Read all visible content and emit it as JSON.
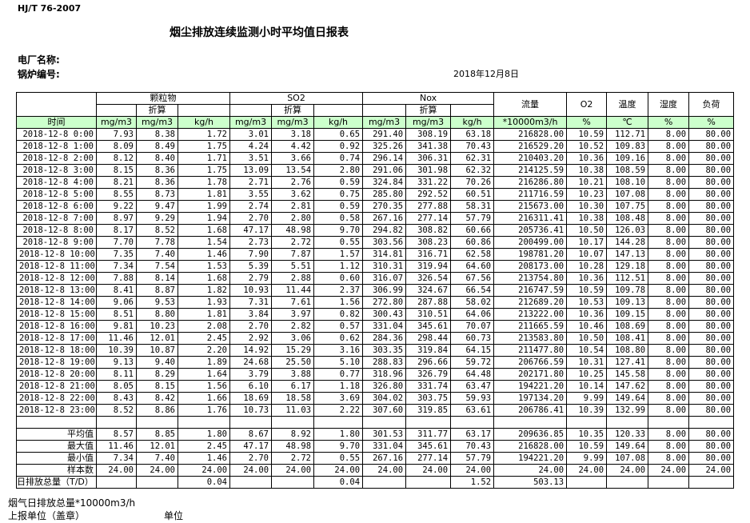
{
  "header": {
    "standard": "HJ/T  76-2007",
    "title": "烟尘排放连续监测小时平均值日报表",
    "plant_label": "电厂名称:",
    "boiler_label": "锅炉编号:",
    "date": "2018年12月8日"
  },
  "table": {
    "group_headers": [
      "颗粒物",
      "SO2",
      "Nox",
      "流量",
      "O2",
      "温度",
      "湿度",
      "负荷"
    ],
    "sub_headers": [
      "折算",
      "折算",
      "折算"
    ],
    "unit_headers": [
      "时间",
      "mg/m3",
      "mg/m3",
      "kg/h",
      "mg/m3",
      "mg/m3",
      "kg/h",
      "mg/m3",
      "mg/m3",
      "kg/h",
      "*10000m3/h",
      "%",
      "℃",
      "%",
      "%"
    ],
    "rows": [
      {
        "time": "2018-12-8 0:00",
        "values": [
          "7.93",
          "8.38",
          "1.72",
          "3.01",
          "3.18",
          "0.65",
          "291.40",
          "308.19",
          "63.18",
          "216828.00",
          "10.59",
          "112.71",
          "8.00",
          "80.00"
        ]
      },
      {
        "time": "2018-12-8 1:00",
        "values": [
          "8.09",
          "8.49",
          "1.75",
          "4.24",
          "4.42",
          "0.92",
          "325.26",
          "341.38",
          "70.43",
          "216529.20",
          "10.52",
          "109.83",
          "8.00",
          "80.00"
        ]
      },
      {
        "time": "2018-12-8 2:00",
        "values": [
          "8.12",
          "8.40",
          "1.71",
          "3.51",
          "3.66",
          "0.74",
          "296.14",
          "306.31",
          "62.31",
          "210403.20",
          "10.36",
          "109.16",
          "8.00",
          "80.00"
        ]
      },
      {
        "time": "2018-12-8 3:00",
        "values": [
          "8.15",
          "8.36",
          "1.75",
          "13.09",
          "13.54",
          "2.80",
          "291.06",
          "301.98",
          "62.32",
          "214125.59",
          "10.38",
          "108.59",
          "8.00",
          "80.00"
        ]
      },
      {
        "time": "2018-12-8 4:00",
        "values": [
          "8.21",
          "8.36",
          "1.78",
          "2.71",
          "2.76",
          "0.59",
          "324.84",
          "331.22",
          "70.26",
          "216286.80",
          "10.21",
          "108.10",
          "8.00",
          "80.00"
        ]
      },
      {
        "time": "2018-12-8 5:00",
        "values": [
          "8.55",
          "8.73",
          "1.81",
          "3.55",
          "3.62",
          "0.75",
          "285.80",
          "292.52",
          "60.51",
          "211716.59",
          "10.23",
          "107.08",
          "8.00",
          "80.00"
        ]
      },
      {
        "time": "2018-12-8 6:00",
        "values": [
          "9.22",
          "9.47",
          "1.99",
          "2.74",
          "2.81",
          "0.59",
          "270.35",
          "277.88",
          "58.31",
          "215673.00",
          "10.30",
          "107.75",
          "8.00",
          "80.00"
        ]
      },
      {
        "time": "2018-12-8 7:00",
        "values": [
          "8.97",
          "9.29",
          "1.94",
          "2.70",
          "2.80",
          "0.58",
          "267.16",
          "277.14",
          "57.79",
          "216311.41",
          "10.38",
          "108.48",
          "8.00",
          "80.00"
        ]
      },
      {
        "time": "2018-12-8 8:00",
        "values": [
          "8.17",
          "8.52",
          "1.68",
          "47.17",
          "48.98",
          "9.70",
          "294.82",
          "308.82",
          "60.66",
          "205736.41",
          "10.50",
          "126.03",
          "8.00",
          "80.00"
        ]
      },
      {
        "time": "2018-12-8 9:00",
        "values": [
          "7.70",
          "7.78",
          "1.54",
          "2.73",
          "2.72",
          "0.55",
          "303.56",
          "308.23",
          "60.86",
          "200499.00",
          "10.17",
          "144.28",
          "8.00",
          "80.00"
        ]
      },
      {
        "time": "2018-12-8 10:00",
        "values": [
          "7.35",
          "7.40",
          "1.46",
          "7.90",
          "7.87",
          "1.57",
          "314.81",
          "316.71",
          "62.58",
          "198781.20",
          "10.07",
          "147.13",
          "8.00",
          "80.00"
        ]
      },
      {
        "time": "2018-12-8 11:00",
        "values": [
          "7.34",
          "7.54",
          "1.53",
          "5.39",
          "5.51",
          "1.12",
          "310.31",
          "319.94",
          "64.60",
          "208173.00",
          "10.28",
          "129.18",
          "8.00",
          "80.00"
        ]
      },
      {
        "time": "2018-12-8 12:00",
        "values": [
          "7.88",
          "8.14",
          "1.68",
          "2.79",
          "2.88",
          "0.60",
          "316.07",
          "326.54",
          "67.56",
          "213754.80",
          "10.36",
          "112.51",
          "8.00",
          "80.00"
        ]
      },
      {
        "time": "2018-12-8 13:00",
        "values": [
          "8.41",
          "8.87",
          "1.82",
          "10.93",
          "11.44",
          "2.37",
          "306.99",
          "324.67",
          "66.54",
          "216747.59",
          "10.59",
          "109.78",
          "8.00",
          "80.00"
        ]
      },
      {
        "time": "2018-12-8 14:00",
        "values": [
          "9.06",
          "9.53",
          "1.93",
          "7.31",
          "7.61",
          "1.56",
          "272.80",
          "287.88",
          "58.02",
          "212689.20",
          "10.53",
          "109.13",
          "8.00",
          "80.00"
        ]
      },
      {
        "time": "2018-12-8 15:00",
        "values": [
          "8.51",
          "8.80",
          "1.81",
          "3.84",
          "3.97",
          "0.82",
          "300.43",
          "310.51",
          "64.06",
          "213222.00",
          "10.36",
          "109.15",
          "8.00",
          "80.00"
        ]
      },
      {
        "time": "2018-12-8 16:00",
        "values": [
          "9.81",
          "10.23",
          "2.08",
          "2.70",
          "2.82",
          "0.57",
          "331.04",
          "345.61",
          "70.07",
          "211665.59",
          "10.46",
          "108.69",
          "8.00",
          "80.00"
        ]
      },
      {
        "time": "2018-12-8 17:00",
        "values": [
          "11.46",
          "12.01",
          "2.45",
          "2.92",
          "3.06",
          "0.62",
          "284.36",
          "298.44",
          "60.73",
          "213583.80",
          "10.50",
          "108.41",
          "8.00",
          "80.00"
        ]
      },
      {
        "time": "2018-12-8 18:00",
        "values": [
          "10.39",
          "10.87",
          "2.20",
          "14.92",
          "15.29",
          "3.16",
          "303.35",
          "319.84",
          "64.15",
          "211477.80",
          "10.54",
          "108.80",
          "8.00",
          "80.00"
        ]
      },
      {
        "time": "2018-12-8 19:00",
        "values": [
          "9.13",
          "9.40",
          "1.89",
          "24.68",
          "25.50",
          "5.10",
          "288.83",
          "296.66",
          "59.72",
          "206766.59",
          "10.31",
          "127.41",
          "8.00",
          "80.00"
        ]
      },
      {
        "time": "2018-12-8 20:00",
        "values": [
          "8.11",
          "8.29",
          "1.64",
          "3.79",
          "3.88",
          "0.77",
          "318.96",
          "326.79",
          "64.48",
          "202171.80",
          "10.25",
          "145.58",
          "8.00",
          "80.00"
        ]
      },
      {
        "time": "2018-12-8 21:00",
        "values": [
          "8.05",
          "8.15",
          "1.56",
          "6.10",
          "6.17",
          "1.18",
          "326.80",
          "331.74",
          "63.47",
          "194221.20",
          "10.14",
          "147.62",
          "8.00",
          "80.00"
        ]
      },
      {
        "time": "2018-12-8 22:00",
        "values": [
          "8.43",
          "8.42",
          "1.66",
          "18.69",
          "18.58",
          "3.69",
          "304.02",
          "303.75",
          "59.93",
          "197134.20",
          "9.99",
          "149.64",
          "8.00",
          "80.00"
        ]
      },
      {
        "time": "2018-12-8 23:00",
        "values": [
          "8.52",
          "8.86",
          "1.76",
          "10.73",
          "11.03",
          "2.22",
          "307.60",
          "319.85",
          "63.61",
          "206786.41",
          "10.39",
          "132.99",
          "8.00",
          "80.00"
        ]
      }
    ],
    "summary": [
      {
        "label": "平均值",
        "values": [
          "8.57",
          "8.85",
          "1.80",
          "8.67",
          "8.92",
          "1.80",
          "301.53",
          "311.77",
          "63.17",
          "209636.85",
          "10.35",
          "120.33",
          "8.00",
          "80.00"
        ]
      },
      {
        "label": "最大值",
        "values": [
          "11.46",
          "12.01",
          "2.45",
          "47.17",
          "48.98",
          "9.70",
          "331.04",
          "345.61",
          "70.43",
          "216828.00",
          "10.59",
          "149.64",
          "8.00",
          "80.00"
        ]
      },
      {
        "label": "最小值",
        "values": [
          "7.34",
          "7.40",
          "1.46",
          "2.70",
          "2.72",
          "0.55",
          "267.16",
          "277.14",
          "57.79",
          "194221.20",
          "9.99",
          "107.08",
          "8.00",
          "80.00"
        ]
      },
      {
        "label": "样本数",
        "values": [
          "24.00",
          "24.00",
          "24.00",
          "24.00",
          "24.00",
          "24.00",
          "24.00",
          "24.00",
          "24.00",
          "24.00",
          "24.00",
          "24.00",
          "24.00",
          "24.00"
        ]
      }
    ],
    "total": {
      "label": "日排放总量（T/D）",
      "values": [
        null,
        null,
        "0.04",
        null,
        null,
        "0.04",
        null,
        null,
        "1.52",
        "503.13",
        null,
        null,
        null,
        null
      ]
    }
  },
  "footer": {
    "flue_gas_total": "烟气日排放总量*10000m3/h",
    "reporting_unit": "上报单位（盖章）",
    "unit": "单位"
  }
}
